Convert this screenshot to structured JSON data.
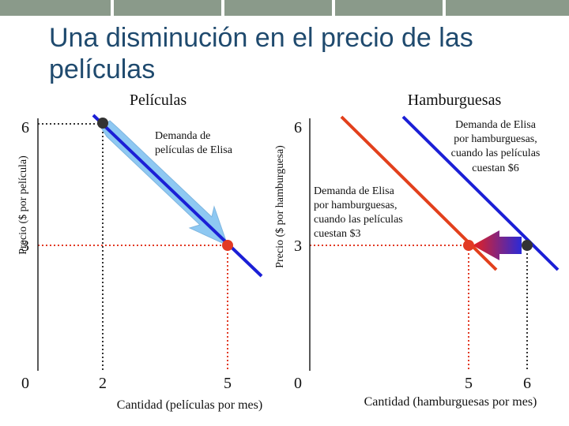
{
  "slide": {
    "title_line1": "Una disminución en el precio de las",
    "title_line2": "películas"
  },
  "chart_data": [
    {
      "type": "line",
      "title": "Películas",
      "ylabel": "Precio ($ por película)",
      "xlabel": "Cantidad (películas por mes)",
      "x_ticks": [
        "0",
        "2",
        "5"
      ],
      "y_ticks": [
        "6",
        "3"
      ],
      "series": [
        {
          "values": [
            [
              2,
              6
            ],
            [
              5,
              3
            ]
          ]
        }
      ],
      "annotations": [
        {
          "text_line1": "Demanda de",
          "text_line2": "películas de Elisa"
        }
      ],
      "points": [
        {
          "x": 2,
          "y": 6
        },
        {
          "x": 5,
          "y": 3
        }
      ],
      "colors": {
        "demand": "#1b1fd6",
        "arrow": "#8ec8f2",
        "point_old": "#333333",
        "point_new": "#e23a24",
        "guide_old": "#333333",
        "guide_new": "#e23a24"
      }
    },
    {
      "type": "line",
      "title": "Hamburguesas",
      "ylabel": "Precio ($ por hamburguesa)",
      "xlabel": "Cantidad (hamburguesas por mes)",
      "x_ticks": [
        "0",
        "5",
        "6"
      ],
      "y_ticks": [
        "6",
        "3"
      ],
      "series": [
        {
          "values": [
            [
              5,
              3
            ]
          ]
        },
        {
          "values": [
            [
              6,
              3
            ]
          ]
        }
      ],
      "annotations": [
        {
          "lines": [
            "Demanda de Elisa",
            "por hamburguesas,",
            "cuando las películas",
            "cuestan $6"
          ]
        },
        {
          "lines": [
            "Demanda de Elisa",
            "por hamburguesas,",
            "cuando las películas",
            "cuestan $3"
          ]
        }
      ],
      "points": [
        {
          "x": 6,
          "y": 3
        },
        {
          "x": 5,
          "y": 3
        }
      ],
      "colors": {
        "demand_new": "#e2401c",
        "demand_old": "#1b1fd6",
        "arrow": "gradient red-blue",
        "point_old": "#333333",
        "point_new": "#e23a24",
        "guide_new": "#e23a24"
      }
    }
  ]
}
